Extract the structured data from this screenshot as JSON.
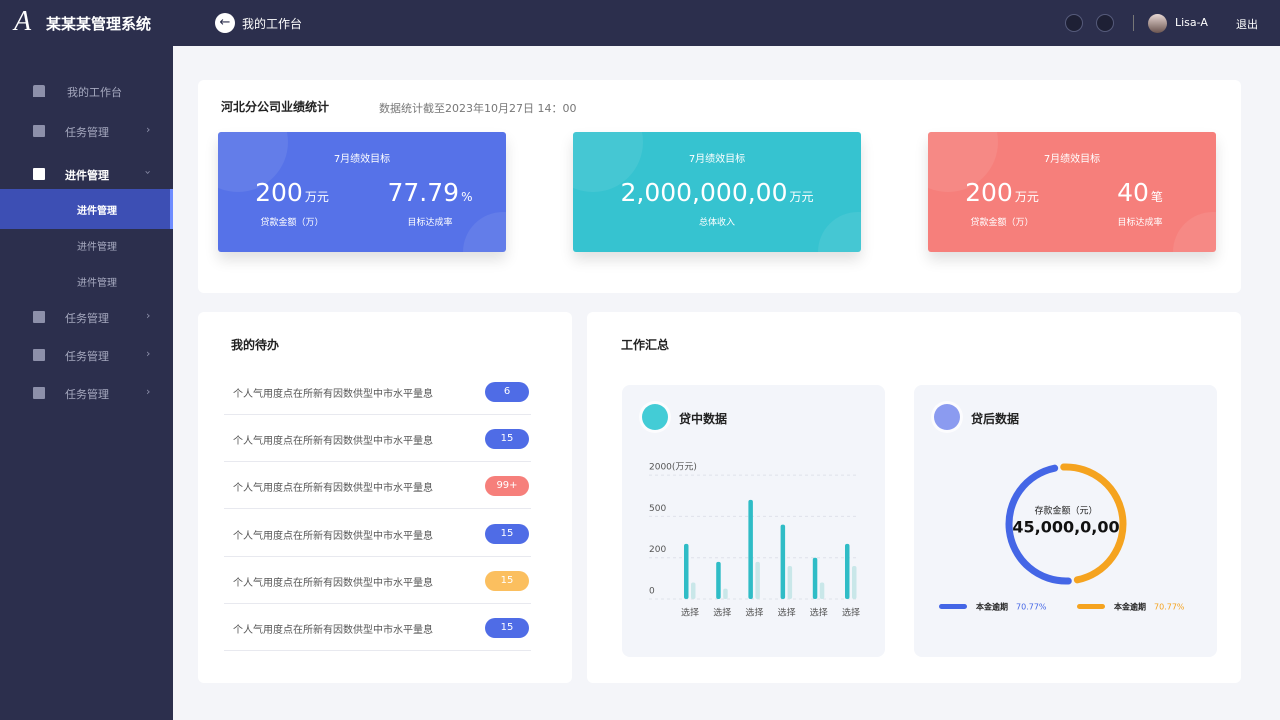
{
  "header": {
    "logo": "A",
    "title": "某某某管理系统",
    "breadcrumb": "我的工作台",
    "user": "Lisa-A",
    "logout": "退出"
  },
  "sidebar": {
    "items": [
      {
        "label": "我的工作台"
      },
      {
        "label": "任务管理"
      },
      {
        "label": "进件管理",
        "children": [
          "进件管理",
          "进件管理",
          "进件管理"
        ]
      },
      {
        "label": "任务管理"
      },
      {
        "label": "任务管理"
      },
      {
        "label": "任务管理"
      }
    ]
  },
  "performance": {
    "title": "河北分公司业绩统计",
    "note": "数据统计截至2023年10月27日 14：00",
    "cards": [
      {
        "title": "7月绩效目标",
        "color": "#5672e8",
        "stats": [
          {
            "value": 200,
            "unit": "万元",
            "label": "贷款金额（万）"
          },
          {
            "value": 77.79,
            "unit": "%",
            "label": "目标达成率"
          }
        ]
      },
      {
        "title": "7月绩效目标",
        "color": "#36c3d0",
        "stats": [
          {
            "value": "2,000,000,00",
            "unit": "万元",
            "label": "总体收入"
          }
        ]
      },
      {
        "title": "7月绩效目标",
        "color": "#f67f7b",
        "stats": [
          {
            "value": 200,
            "unit": "万元",
            "label": "贷款金额（万）"
          },
          {
            "value": 40,
            "unit": "笔",
            "label": "目标达成率"
          }
        ]
      }
    ]
  },
  "todo": {
    "title": "我的待办",
    "items": [
      {
        "text": "个人气用度点在所新有因数供型中市水平量息",
        "badge": 6,
        "color": "#4f6ce6"
      },
      {
        "text": "个人气用度点在所新有因数供型中市水平量息",
        "badge": 15,
        "color": "#4f6ce6"
      },
      {
        "text": "个人气用度点在所新有因数供型中市水平量息",
        "badge": "99+",
        "color": "#f67f7b"
      },
      {
        "text": "个人气用度点在所新有因数供型中市水平量息",
        "badge": 15,
        "color": "#4f6ce6"
      },
      {
        "text": "个人气用度点在所新有因数供型中市水平量息",
        "badge": 15,
        "color": "#fbbf5f"
      },
      {
        "text": "个人气用度点在所新有因数供型中市水平量息",
        "badge": 15,
        "color": "#4f6ce6"
      }
    ]
  },
  "summary": {
    "title": "工作汇总",
    "in_loan": {
      "title": "贷中数据",
      "chart_data": {
        "type": "bar",
        "categories": [
          "选择",
          "选择",
          "选择",
          "选择",
          "选择",
          "选择"
        ],
        "series": [
          {
            "color": "#2fbcc6",
            "values": [
              300,
              180,
              1100,
              440,
              200,
              300
            ]
          },
          {
            "color": "#c9e7e9",
            "values": [
              80,
              50,
              180,
              160,
              80,
              160
            ]
          }
        ],
        "ylim": [
          0,
          2000
        ],
        "yticks": [
          {
            "value": 2000,
            "label": "2000(万元)"
          },
          500,
          200,
          0
        ],
        "grid": true
      }
    },
    "post_loan": {
      "title": "贷后数据",
      "chart_data": {
        "type": "donut",
        "center_label": "存款金额（元）",
        "center_value": "45,000,0,00",
        "series": [
          {
            "name": "本金逾期",
            "value": 70.77,
            "value_label": "70.77%",
            "color": "#4466e6"
          },
          {
            "name": "本金逾期",
            "value": 70.77,
            "value_label": "70.77%",
            "color": "#f5a31f"
          }
        ]
      }
    }
  }
}
